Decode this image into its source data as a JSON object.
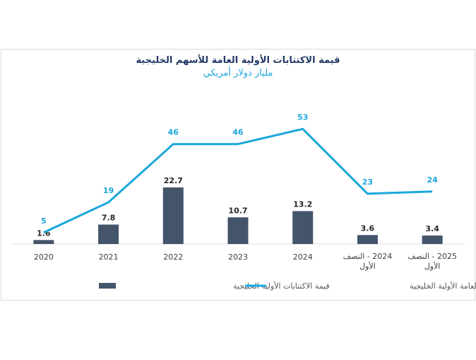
{
  "chart_data": {
    "type": "bar+line",
    "title": "قيمة الاكتتابات الأولية العامة للأسهم الخليجية",
    "subtitle": "مليار دولار أمريكي",
    "categories": [
      "2020",
      "2021",
      "2022",
      "2023",
      "2024",
      "2024 - النصف الأول",
      "2025 - النصف الأول"
    ],
    "series": [
      {
        "name": "قيمة الاكتتابات الأولية الخليجية",
        "kind": "bar",
        "color": "#44546a",
        "values": [
          1.6,
          7.8,
          22.7,
          10.7,
          13.2,
          3.6,
          3.4
        ]
      },
      {
        "name": "عدد الاكتتابات العامة الأولية الخليجية",
        "kind": "line",
        "color": "#1aa7dc",
        "values": [
          5,
          19,
          46,
          46,
          53,
          23,
          24
        ]
      }
    ],
    "legend": "bottom",
    "grid": false
  }
}
